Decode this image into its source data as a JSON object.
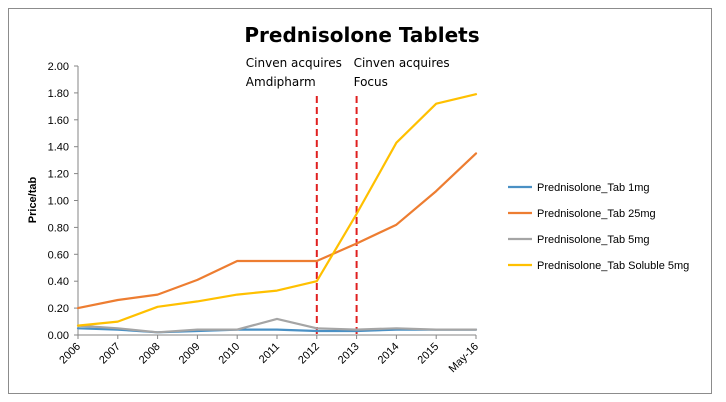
{
  "chart_data": {
    "type": "line",
    "title": "Prednisolone Tablets",
    "xlabel": "",
    "ylabel": "Price/tab",
    "ylim": [
      0,
      2
    ],
    "yticks": [
      "0.00",
      "0.20",
      "0.40",
      "0.60",
      "0.80",
      "1.00",
      "1.20",
      "1.40",
      "1.60",
      "1.80",
      "2.00"
    ],
    "categories": [
      "2006",
      "2007",
      "2008",
      "2009",
      "2010",
      "2011",
      "2012",
      "2013",
      "2014",
      "2015",
      "May-16"
    ],
    "grid": false,
    "legend": "right",
    "series": [
      {
        "name": "Prednisolone_Tab 1mg",
        "color": "#4a90c4",
        "values": [
          0.05,
          0.04,
          0.02,
          0.03,
          0.04,
          0.04,
          0.03,
          0.03,
          0.04,
          0.04,
          0.04
        ]
      },
      {
        "name": "Prednisolone_Tab 25mg",
        "color": "#ed7d31",
        "values": [
          0.2,
          0.26,
          0.3,
          0.41,
          0.55,
          0.55,
          0.55,
          0.68,
          0.82,
          1.07,
          1.35
        ]
      },
      {
        "name": "Prednisolone_Tab 5mg",
        "color": "#a5a5a5",
        "values": [
          0.07,
          0.05,
          0.02,
          0.04,
          0.04,
          0.12,
          0.05,
          0.04,
          0.05,
          0.04,
          0.04
        ]
      },
      {
        "name": "Prednisolone_Tab Soluble 5mg",
        "color": "#ffc000",
        "values": [
          0.07,
          0.1,
          0.21,
          0.25,
          0.3,
          0.33,
          0.4,
          0.9,
          1.43,
          1.72,
          1.79
        ]
      }
    ],
    "annotations": [
      {
        "at": "2012",
        "lines": [
          "Cinven acquires",
          "Amdipharm"
        ],
        "color": "#e02020",
        "style": "dashed"
      },
      {
        "at": "2013",
        "lines": [
          "Cinven acquires",
          "Focus"
        ],
        "color": "#e02020",
        "style": "dashed"
      }
    ]
  }
}
